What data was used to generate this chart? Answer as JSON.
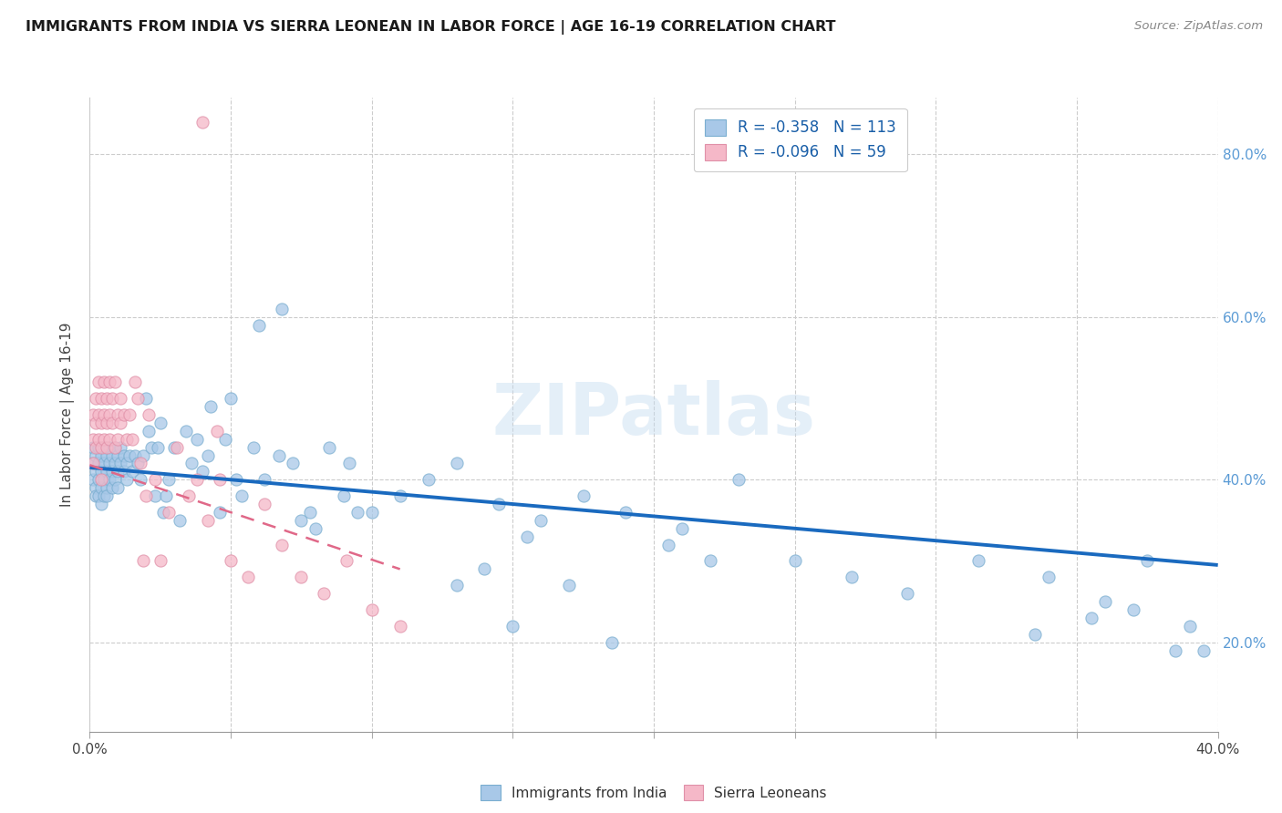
{
  "title": "IMMIGRANTS FROM INDIA VS SIERRA LEONEAN IN LABOR FORCE | AGE 16-19 CORRELATION CHART",
  "source": "Source: ZipAtlas.com",
  "ylabel": "In Labor Force | Age 16-19",
  "ytick_vals": [
    0.2,
    0.4,
    0.6,
    0.8
  ],
  "xlim": [
    0.0,
    0.4
  ],
  "ylim": [
    0.09,
    0.87
  ],
  "india_color": "#a8c8e8",
  "india_edge_color": "#7aaed0",
  "india_line_color": "#1a6abf",
  "sierra_color": "#f5b8c8",
  "sierra_edge_color": "#e090a8",
  "sierra_line_color": "#e06888",
  "india_R": -0.358,
  "india_N": 113,
  "sierra_R": -0.096,
  "sierra_N": 59,
  "watermark": "ZIPatlas",
  "legend_label_india": "Immigrants from India",
  "legend_label_sierra": "Sierra Leoneans",
  "india_x": [
    0.001,
    0.001,
    0.001,
    0.002,
    0.002,
    0.002,
    0.002,
    0.003,
    0.003,
    0.003,
    0.003,
    0.004,
    0.004,
    0.004,
    0.004,
    0.005,
    0.005,
    0.005,
    0.005,
    0.006,
    0.006,
    0.006,
    0.006,
    0.007,
    0.007,
    0.007,
    0.008,
    0.008,
    0.008,
    0.009,
    0.009,
    0.009,
    0.01,
    0.01,
    0.01,
    0.011,
    0.011,
    0.012,
    0.012,
    0.013,
    0.013,
    0.014,
    0.015,
    0.016,
    0.017,
    0.018,
    0.019,
    0.02,
    0.021,
    0.022,
    0.023,
    0.024,
    0.025,
    0.026,
    0.027,
    0.028,
    0.03,
    0.032,
    0.034,
    0.036,
    0.038,
    0.04,
    0.043,
    0.046,
    0.05,
    0.054,
    0.058,
    0.062,
    0.067,
    0.072,
    0.078,
    0.085,
    0.092,
    0.1,
    0.11,
    0.12,
    0.13,
    0.145,
    0.16,
    0.175,
    0.19,
    0.21,
    0.23,
    0.25,
    0.27,
    0.29,
    0.315,
    0.34,
    0.36,
    0.375,
    0.39,
    0.395,
    0.335,
    0.355,
    0.37,
    0.385,
    0.205,
    0.22,
    0.155,
    0.17,
    0.185,
    0.14,
    0.15,
    0.13,
    0.08,
    0.09,
    0.095,
    0.06,
    0.068,
    0.052,
    0.075,
    0.042,
    0.048
  ],
  "india_y": [
    0.42,
    0.44,
    0.4,
    0.43,
    0.41,
    0.39,
    0.38,
    0.42,
    0.44,
    0.4,
    0.38,
    0.41,
    0.43,
    0.39,
    0.37,
    0.42,
    0.44,
    0.4,
    0.38,
    0.41,
    0.43,
    0.39,
    0.38,
    0.42,
    0.44,
    0.4,
    0.41,
    0.43,
    0.39,
    0.42,
    0.44,
    0.4,
    0.41,
    0.43,
    0.39,
    0.42,
    0.44,
    0.41,
    0.43,
    0.42,
    0.4,
    0.43,
    0.41,
    0.43,
    0.42,
    0.4,
    0.43,
    0.5,
    0.46,
    0.44,
    0.38,
    0.44,
    0.47,
    0.36,
    0.38,
    0.4,
    0.44,
    0.35,
    0.46,
    0.42,
    0.45,
    0.41,
    0.49,
    0.36,
    0.5,
    0.38,
    0.44,
    0.4,
    0.43,
    0.42,
    0.36,
    0.44,
    0.42,
    0.36,
    0.38,
    0.4,
    0.42,
    0.37,
    0.35,
    0.38,
    0.36,
    0.34,
    0.4,
    0.3,
    0.28,
    0.26,
    0.3,
    0.28,
    0.25,
    0.3,
    0.22,
    0.19,
    0.21,
    0.23,
    0.24,
    0.19,
    0.32,
    0.3,
    0.33,
    0.27,
    0.2,
    0.29,
    0.22,
    0.27,
    0.34,
    0.38,
    0.36,
    0.59,
    0.61,
    0.4,
    0.35,
    0.43,
    0.45
  ],
  "sierra_x": [
    0.001,
    0.001,
    0.001,
    0.002,
    0.002,
    0.002,
    0.003,
    0.003,
    0.003,
    0.004,
    0.004,
    0.004,
    0.004,
    0.005,
    0.005,
    0.005,
    0.006,
    0.006,
    0.006,
    0.007,
    0.007,
    0.007,
    0.008,
    0.008,
    0.009,
    0.009,
    0.01,
    0.01,
    0.011,
    0.011,
    0.012,
    0.013,
    0.014,
    0.015,
    0.016,
    0.017,
    0.018,
    0.019,
    0.02,
    0.021,
    0.023,
    0.025,
    0.028,
    0.031,
    0.035,
    0.038,
    0.042,
    0.046,
    0.05,
    0.056,
    0.062,
    0.068,
    0.075,
    0.083,
    0.091,
    0.1,
    0.11,
    0.045,
    0.04
  ],
  "sierra_y": [
    0.42,
    0.48,
    0.45,
    0.5,
    0.47,
    0.44,
    0.52,
    0.48,
    0.45,
    0.5,
    0.47,
    0.44,
    0.4,
    0.52,
    0.48,
    0.45,
    0.5,
    0.47,
    0.44,
    0.52,
    0.48,
    0.45,
    0.5,
    0.47,
    0.52,
    0.44,
    0.48,
    0.45,
    0.5,
    0.47,
    0.48,
    0.45,
    0.48,
    0.45,
    0.52,
    0.5,
    0.42,
    0.3,
    0.38,
    0.48,
    0.4,
    0.3,
    0.36,
    0.44,
    0.38,
    0.4,
    0.35,
    0.4,
    0.3,
    0.28,
    0.37,
    0.32,
    0.28,
    0.26,
    0.3,
    0.24,
    0.22,
    0.46,
    0.84
  ]
}
